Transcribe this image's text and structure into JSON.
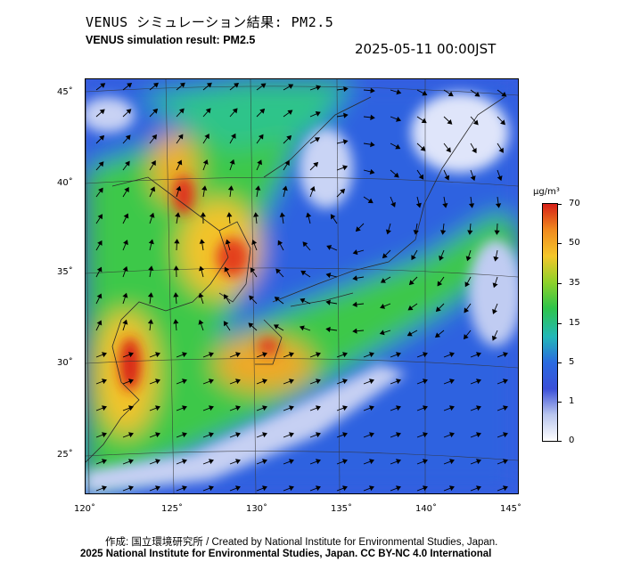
{
  "header": {
    "title_jp": "VENUS シミュレーション結果: PM2.5",
    "title_en": "VENUS simulation result: PM2.5",
    "timestamp": "2025-05-11 00:00JST"
  },
  "map": {
    "latitude_labels": [
      "45˚",
      "40˚",
      "35˚",
      "30˚",
      "25˚"
    ],
    "longitude_labels": [
      "120˚",
      "125˚",
      "130˚",
      "135˚",
      "140˚",
      "145˚"
    ]
  },
  "colorbar": {
    "unit": "µg/m³",
    "ticks": [
      "70",
      "50",
      "35",
      "15",
      "5",
      "1",
      "0"
    ],
    "colors": [
      "#d62018",
      "#f08a1e",
      "#f5c72a",
      "#8fd22a",
      "#2ec44a",
      "#22b8b8",
      "#2a6ae0",
      "#3a4fd8",
      "#b9c6ee",
      "#ffffff"
    ]
  },
  "footer": {
    "credit": "作成: 国立環境研究所 / Created by National Institute for Environmental Studies, Japan.",
    "copyright": "2025 National Institute for Environmental Studies, Japan. CC BY-NC 4.0 International"
  }
}
